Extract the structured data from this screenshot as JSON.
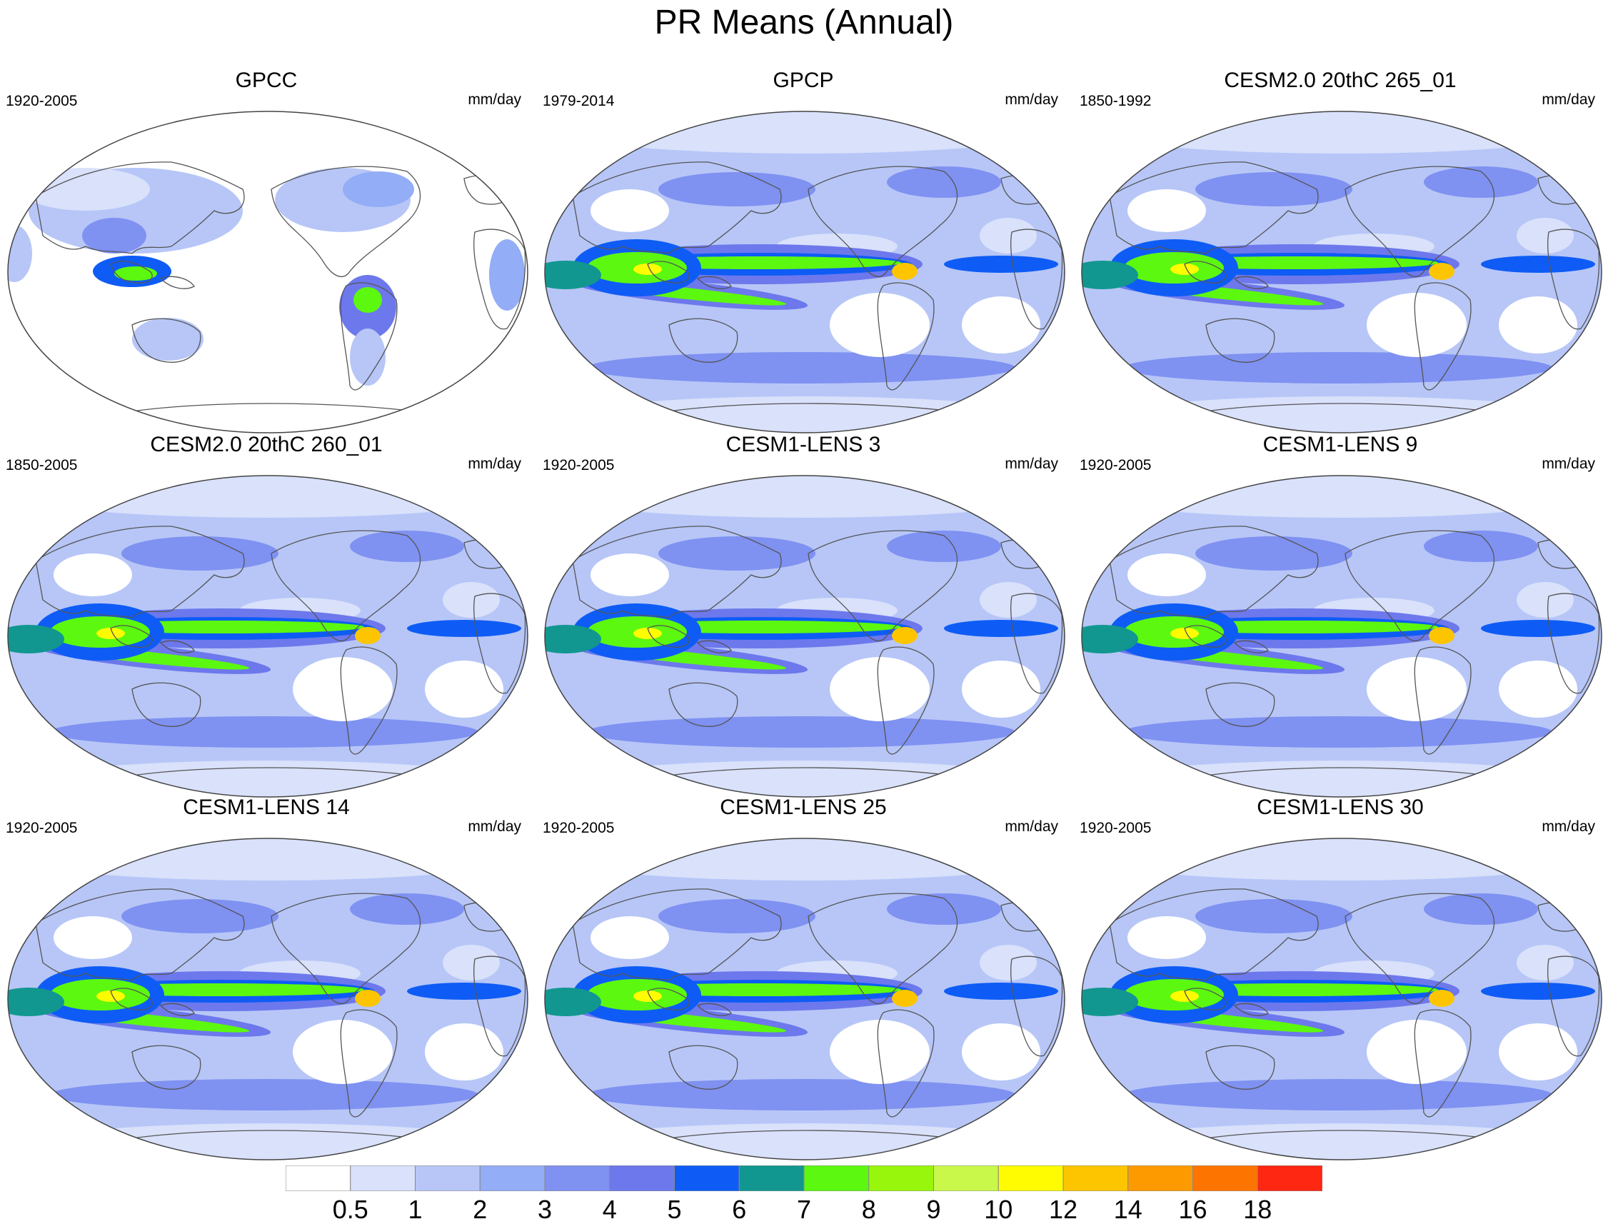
{
  "title": "PR Means (Annual)",
  "panels": [
    {
      "title": "GPCC",
      "period": "1920-2005",
      "units": "mm/day",
      "style": "land"
    },
    {
      "title": "GPCP",
      "period": "1979-2014",
      "units": "mm/day",
      "style": "obs"
    },
    {
      "title": "CESM2.0 20thC 265_01",
      "period": "1850-1992",
      "units": "mm/day",
      "style": "model"
    },
    {
      "title": "CESM2.0 20thC 260_01",
      "period": "1850-2005",
      "units": "mm/day",
      "style": "model"
    },
    {
      "title": "CESM1-LENS 3",
      "period": "1920-2005",
      "units": "mm/day",
      "style": "model"
    },
    {
      "title": "CESM1-LENS 9",
      "period": "1920-2005",
      "units": "mm/day",
      "style": "model"
    },
    {
      "title": "CESM1-LENS 14",
      "period": "1920-2005",
      "units": "mm/day",
      "style": "model"
    },
    {
      "title": "CESM1-LENS 25",
      "period": "1920-2005",
      "units": "mm/day",
      "style": "model"
    },
    {
      "title": "CESM1-LENS 30",
      "period": "1920-2005",
      "units": "mm/day",
      "style": "model"
    }
  ],
  "colorbar": {
    "labels": [
      "0.5",
      "1",
      "2",
      "3",
      "4",
      "5",
      "6",
      "7",
      "8",
      "9",
      "10",
      "12",
      "14",
      "16",
      "18"
    ],
    "colors": [
      "#ffffff",
      "#d9e1fb",
      "#b7c6f7",
      "#93adf6",
      "#7f91f1",
      "#6d78ec",
      "#0e5cf5",
      "#11978f",
      "#5cf80f",
      "#98f60c",
      "#c9f84a",
      "#fffb00",
      "#fdc500",
      "#fd9a00",
      "#fd7400",
      "#fd2712"
    ]
  }
}
